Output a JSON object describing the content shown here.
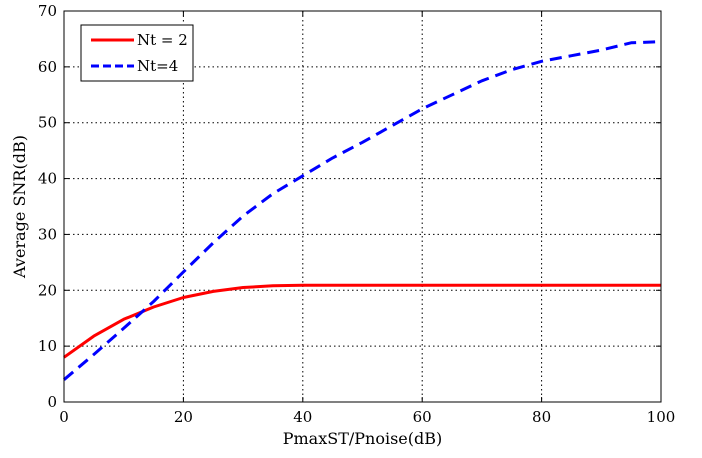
{
  "chart_data": {
    "type": "line",
    "title": "",
    "xlabel": "PmaxST/Pnoise(dB)",
    "ylabel": "Average SNR(dB)",
    "xlim": [
      0,
      100
    ],
    "ylim": [
      0,
      70
    ],
    "xticks": [
      0,
      20,
      40,
      60,
      80,
      100
    ],
    "yticks": [
      0,
      10,
      20,
      30,
      40,
      50,
      60,
      70
    ],
    "grid": true,
    "legend_position": "top-left",
    "series": [
      {
        "name": "Nt = 2",
        "color": "#ff0000",
        "style": "solid",
        "x": [
          0,
          5,
          10,
          15,
          20,
          25,
          30,
          35,
          40,
          50,
          60,
          70,
          80,
          90,
          100
        ],
        "y": [
          8,
          11.8,
          14.8,
          17,
          18.7,
          19.8,
          20.5,
          20.8,
          20.9,
          20.9,
          20.9,
          20.9,
          20.9,
          20.9,
          20.9
        ]
      },
      {
        "name": "Nt=4",
        "color": "#0000ff",
        "style": "dashed",
        "x": [
          0,
          5,
          10,
          15,
          20,
          25,
          30,
          35,
          40,
          45,
          50,
          55,
          60,
          65,
          70,
          75,
          80,
          85,
          90,
          95,
          100
        ],
        "y": [
          4,
          8.5,
          13.2,
          18,
          23.3,
          28.5,
          33.3,
          37.3,
          40.5,
          43.7,
          46.5,
          49.5,
          52.5,
          55,
          57.5,
          59.5,
          61,
          62,
          63,
          64.3,
          64.5
        ]
      }
    ]
  }
}
